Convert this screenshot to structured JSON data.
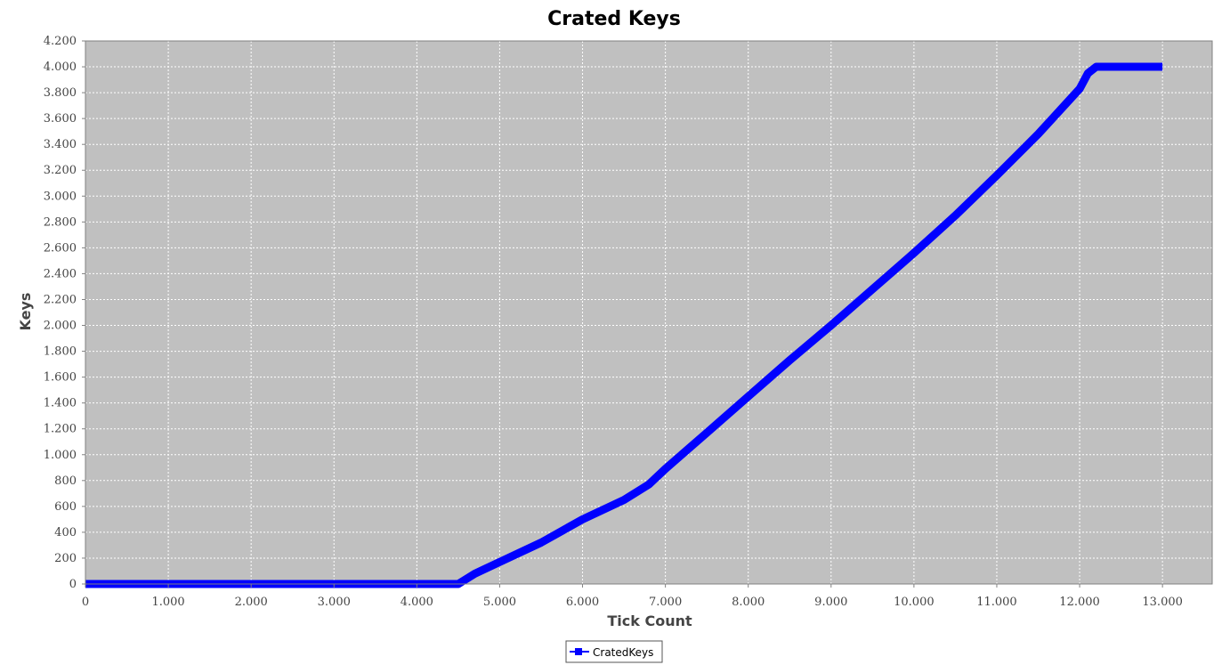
{
  "chart_data": {
    "type": "line",
    "title": "Crated Keys",
    "xlabel": "Tick Count",
    "ylabel": "Keys",
    "xlim": [
      0,
      13600
    ],
    "ylim": [
      0,
      4200
    ],
    "x_ticks": [
      0,
      1000,
      2000,
      3000,
      4000,
      5000,
      6000,
      7000,
      8000,
      9000,
      10000,
      11000,
      12000,
      13000
    ],
    "x_tick_labels": [
      "0",
      "1.000",
      "2.000",
      "3.000",
      "4.000",
      "5.000",
      "6.000",
      "7.000",
      "8.000",
      "9.000",
      "10.000",
      "11.000",
      "12.000",
      "13.000"
    ],
    "y_ticks": [
      0,
      200,
      400,
      600,
      800,
      1000,
      1200,
      1400,
      1600,
      1800,
      2000,
      2200,
      2400,
      2600,
      2800,
      3000,
      3200,
      3400,
      3600,
      3800,
      4000,
      4200
    ],
    "y_tick_labels": [
      "0",
      "200",
      "400",
      "600",
      "800",
      "1.000",
      "1.200",
      "1.400",
      "1.600",
      "1.800",
      "2.000",
      "2.200",
      "2.400",
      "2.600",
      "2.800",
      "3.000",
      "3.200",
      "3.400",
      "3.600",
      "3.800",
      "4.000",
      "4.200"
    ],
    "grid": true,
    "legend_position": "bottom-center",
    "series": [
      {
        "name": "CratedKeys",
        "color": "#0000ff",
        "x": [
          0,
          1000,
          2000,
          3000,
          4000,
          4500,
          4550,
          4700,
          5000,
          5500,
          6000,
          6500,
          6800,
          7000,
          7500,
          8000,
          8500,
          9000,
          9500,
          10000,
          10500,
          11000,
          11500,
          12000,
          12100,
          12200,
          13000
        ],
        "y": [
          0,
          0,
          0,
          0,
          0,
          0,
          20,
          80,
          170,
          320,
          500,
          650,
          770,
          890,
          1170,
          1450,
          1730,
          2000,
          2280,
          2560,
          2850,
          3160,
          3480,
          3830,
          3950,
          4000,
          4000
        ]
      }
    ]
  }
}
